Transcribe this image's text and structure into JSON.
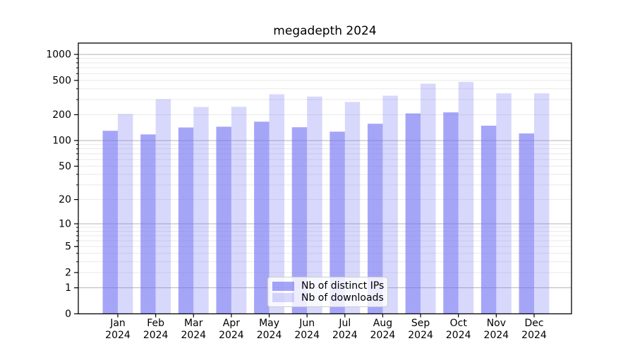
{
  "title": "megadepth 2024",
  "background_color": "#ffffff",
  "legend": {
    "position": "lower center",
    "items": [
      {
        "label": "Nb of distinct IPs",
        "color": "rgba(110,110,243,0.62)"
      },
      {
        "label": "Nb of downloads",
        "color": "rgba(110,110,243,0.27)"
      }
    ]
  },
  "chart_data": {
    "type": "bar",
    "title": "megadepth 2024",
    "categories": [
      "Jan 2024",
      "Feb 2024",
      "Mar 2024",
      "Apr 2024",
      "May 2024",
      "Jun 2024",
      "Jul 2024",
      "Aug 2024",
      "Sep 2024",
      "Oct 2024",
      "Nov 2024",
      "Dec 2024"
    ],
    "series": [
      {
        "name": "Nb of distinct IPs",
        "color": "rgba(110,110,243,0.62)",
        "values": [
          130,
          118,
          142,
          145,
          166,
          143,
          127,
          157,
          207,
          213,
          149,
          121
        ]
      },
      {
        "name": "Nb of downloads",
        "color": "rgba(110,110,243,0.27)",
        "values": [
          204,
          303,
          246,
          247,
          345,
          325,
          281,
          333,
          458,
          480,
          354,
          354
        ]
      }
    ],
    "xlabel": "",
    "ylabel": "",
    "yscale": "symlog",
    "yticks": [
      0,
      1,
      2,
      5,
      10,
      20,
      50,
      100,
      200,
      500,
      1000
    ],
    "yticks_minor": [
      2,
      3,
      4,
      5,
      6,
      7,
      8,
      9,
      20,
      30,
      40,
      50,
      60,
      70,
      80,
      90,
      200,
      300,
      400,
      500,
      600,
      700,
      800,
      900
    ],
    "ylim": [
      0,
      1368
    ],
    "grid": {
      "on": true,
      "major_color": "#b5b5b5",
      "minor_color": "#e9e9e9"
    },
    "axis_color": "#000000",
    "legend_position": "lower center"
  }
}
